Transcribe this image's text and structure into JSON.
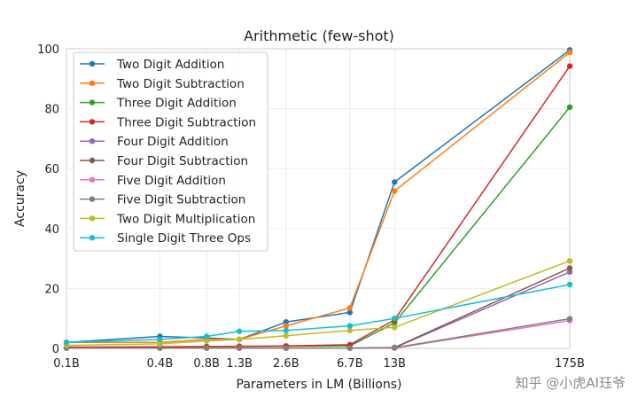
{
  "chart_data": {
    "type": "line",
    "title": "Arithmetic (few-shot)",
    "xlabel": "Parameters in LM (Billions)",
    "ylabel": "Accuracy",
    "x": [
      0.1,
      0.4,
      0.8,
      1.3,
      2.6,
      6.7,
      13,
      175
    ],
    "x_tick_labels": [
      "0.1B",
      "0.4B",
      "0.8B",
      "1.3B",
      "2.6B",
      "6.7B",
      "13B",
      "175B"
    ],
    "y_ticks": [
      0,
      20,
      40,
      60,
      80,
      100
    ],
    "ylim": [
      0,
      100
    ],
    "grid": true,
    "legend_position": "top-left",
    "series": [
      {
        "name": "Two Digit Addition",
        "color": "#1f77b4",
        "values": [
          2.0,
          4.0,
          3.5,
          3.0,
          8.8,
          12.0,
          55.5,
          99.6
        ]
      },
      {
        "name": "Two Digit Subtraction",
        "color": "#ff7f0e",
        "values": [
          2.0,
          2.0,
          3.0,
          3.0,
          7.5,
          13.5,
          52.5,
          98.8
        ]
      },
      {
        "name": "Three Digit Addition",
        "color": "#2ca02c",
        "values": [
          0.3,
          0.5,
          0.6,
          0.6,
          0.7,
          0.8,
          8.5,
          80.5
        ]
      },
      {
        "name": "Three Digit Subtraction",
        "color": "#d62728",
        "values": [
          0.4,
          0.5,
          0.6,
          0.7,
          0.8,
          1.2,
          9.5,
          94.2
        ]
      },
      {
        "name": "Four Digit Addition",
        "color": "#9467bd",
        "values": [
          0.1,
          0.1,
          0.1,
          0.1,
          0.1,
          0.1,
          0.2,
          25.5
        ]
      },
      {
        "name": "Four Digit Subtraction",
        "color": "#8c564b",
        "values": [
          0.1,
          0.1,
          0.1,
          0.1,
          0.1,
          0.1,
          0.3,
          26.8
        ]
      },
      {
        "name": "Five Digit Addition",
        "color": "#e377c2",
        "values": [
          0.1,
          0.1,
          0.1,
          0.1,
          0.1,
          0.1,
          0.1,
          9.3
        ]
      },
      {
        "name": "Five Digit Subtraction",
        "color": "#7f7f7f",
        "values": [
          0.1,
          0.1,
          0.1,
          0.1,
          0.1,
          0.1,
          0.2,
          9.9
        ]
      },
      {
        "name": "Two Digit Multiplication",
        "color": "#bcbd22",
        "values": [
          1.0,
          1.5,
          2.5,
          3.0,
          4.2,
          6.0,
          7.0,
          29.2
        ]
      },
      {
        "name": "Single Digit Three Ops",
        "color": "#17becf",
        "values": [
          2.0,
          3.0,
          4.0,
          5.7,
          6.0,
          7.5,
          10.0,
          21.3
        ]
      }
    ]
  },
  "watermark": {
    "text": "知乎 @小虎AI珏爷"
  }
}
